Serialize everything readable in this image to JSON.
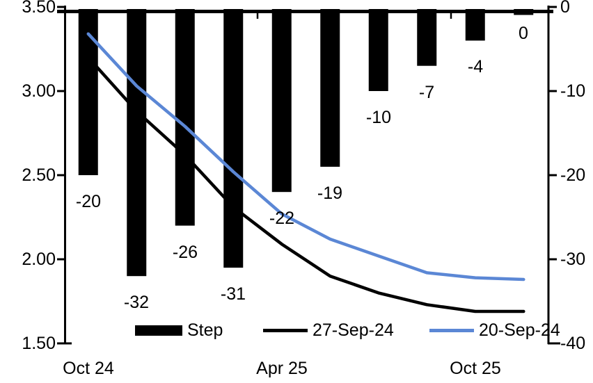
{
  "chart_data": {
    "type": "bar+line",
    "title": "",
    "bar_series": {
      "name": "Step",
      "axis": "right",
      "color": "#000000",
      "values": [
        -20,
        -32,
        -26,
        -31,
        -22,
        -19,
        -10,
        -7,
        -4,
        0
      ],
      "data_labels": [
        "-20",
        "-32",
        "-26",
        "-31",
        "-22",
        "-19",
        "-10",
        "-7",
        "-4",
        "0"
      ]
    },
    "line_series": [
      {
        "name": "27-Sep-24",
        "axis": "left",
        "color": "#000000",
        "values": [
          3.2,
          2.88,
          2.62,
          2.31,
          2.09,
          1.9,
          1.8,
          1.73,
          1.69,
          1.69
        ]
      },
      {
        "name": "20-Sep-24",
        "axis": "left",
        "color": "#5B87D5",
        "values": [
          3.34,
          3.03,
          2.79,
          2.52,
          2.27,
          2.12,
          2.02,
          1.92,
          1.89,
          1.88
        ]
      }
    ],
    "x_axis": {
      "num_categories": 10,
      "tick_labels": [
        {
          "text": "Oct 24",
          "category_index": 0
        },
        {
          "text": "Apr 25",
          "category_index": 4
        },
        {
          "text": "Oct 25",
          "category_index": 8
        }
      ],
      "boundary_tick_indices": [
        4,
        8
      ]
    },
    "left_axis": {
      "min": 1.5,
      "max": 3.5,
      "tick_labels": [
        "3.50",
        "3.00",
        "2.50",
        "2.00",
        "1.50"
      ]
    },
    "right_axis": {
      "min": -40,
      "max": 0,
      "tick_labels": [
        "0",
        "-10",
        "-20",
        "-30",
        "-40"
      ]
    },
    "legend": [
      {
        "label": "Step",
        "swatch": "bar",
        "color": "#000000"
      },
      {
        "label": "27-Sep-24",
        "swatch": "line",
        "color": "#000000"
      },
      {
        "label": "20-Sep-24",
        "swatch": "line",
        "color": "#5B87D5"
      }
    ],
    "legend_position": "bottom",
    "grid": "off"
  }
}
